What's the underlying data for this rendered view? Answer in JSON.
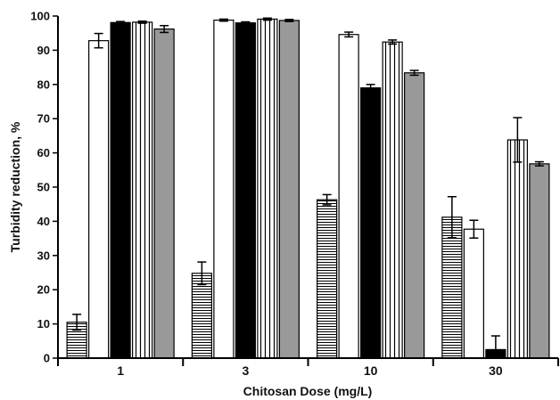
{
  "chart_data": {
    "type": "bar",
    "title": "",
    "xlabel": "Chitosan Dose (mg/L)",
    "ylabel": "Turbidity reduction, %",
    "ylim": [
      0,
      100
    ],
    "yticks": [
      "0",
      "10",
      "20",
      "30",
      "40",
      "50",
      "60",
      "70",
      "80",
      "90",
      "100"
    ],
    "categories": [
      "1",
      "3",
      "10",
      "30"
    ],
    "grid": false,
    "legend": "none",
    "series": [
      {
        "pattern": "horizontal-hatch",
        "color": "#ffffff",
        "values": [
          10.5,
          24.8,
          46.3,
          41.2
        ],
        "errors": [
          2.3,
          3.3,
          1.5,
          6.0
        ]
      },
      {
        "pattern": "white",
        "color": "#ffffff",
        "values": [
          92.8,
          98.8,
          94.6,
          37.7
        ],
        "errors": [
          2.1,
          0.3,
          0.7,
          2.6
        ]
      },
      {
        "pattern": "black",
        "color": "#000000",
        "values": [
          98.1,
          98.0,
          79.0,
          2.5
        ],
        "errors": [
          0.3,
          0.3,
          1.0,
          4.0
        ]
      },
      {
        "pattern": "vertical-hatch",
        "color": "#ffffff",
        "values": [
          98.2,
          99.1,
          92.4,
          63.8
        ],
        "errors": [
          0.3,
          0.3,
          0.6,
          6.5
        ]
      },
      {
        "pattern": "gray",
        "color": "#999999",
        "values": [
          96.2,
          98.7,
          83.4,
          56.8
        ],
        "errors": [
          1.0,
          0.3,
          0.7,
          0.6
        ]
      }
    ]
  }
}
